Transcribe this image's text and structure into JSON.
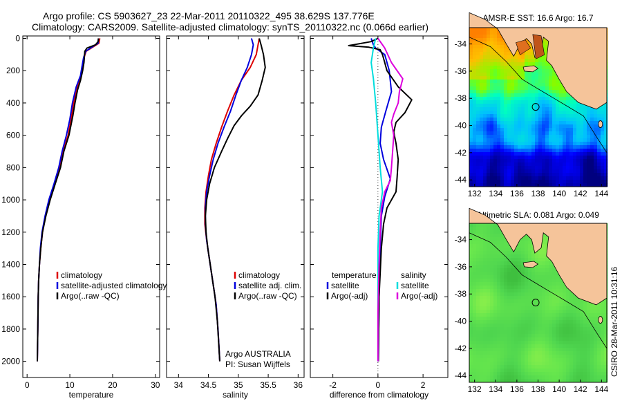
{
  "header": {
    "line1": "Argo profile: CS 5903627_23 22-Mar-2011 20110322_495 38.629S 137.776E",
    "line2": "Climatology: CARS2009. Satellite-adjusted climatology: synTS_20110322.nc (0.066d earlier)"
  },
  "side_text": "CSIRO 28-Mar-2011 10:31:16",
  "chart_data": [
    {
      "type": "line",
      "xlabel": "temperature",
      "ylabel": "",
      "xlim": [
        -1,
        31
      ],
      "ylim": [
        2100,
        0
      ],
      "xticks": [
        0,
        10,
        20,
        30
      ],
      "yticks": [
        0,
        200,
        400,
        600,
        800,
        1000,
        1200,
        1400,
        1600,
        1800,
        2000
      ],
      "legend": [
        "climatology",
        "satellite-adjusted climatology",
        "Argo(..raw -QC)"
      ],
      "legend_position": "lower-right",
      "series": [
        {
          "name": "climatology",
          "color": "#dd0000",
          "points": [
            [
              17.0,
              0
            ],
            [
              16.8,
              30
            ],
            [
              15.0,
              60
            ],
            [
              13.8,
              80
            ],
            [
              13.3,
              120
            ],
            [
              12.9,
              180
            ],
            [
              12.6,
              230
            ],
            [
              11.8,
              300
            ],
            [
              10.9,
              400
            ],
            [
              10.3,
              500
            ],
            [
              9.6,
              600
            ],
            [
              8.4,
              700
            ],
            [
              7.6,
              800
            ],
            [
              6.4,
              900
            ],
            [
              5.2,
              1000
            ],
            [
              4.3,
              1100
            ],
            [
              3.6,
              1200
            ],
            [
              3.2,
              1300
            ],
            [
              2.9,
              1400
            ],
            [
              2.7,
              1500
            ],
            [
              2.6,
              1600
            ],
            [
              2.5,
              1800
            ],
            [
              2.4,
              2000
            ]
          ]
        },
        {
          "name": "satellite-adjusted climatology",
          "color": "#0000dd",
          "points": [
            [
              16.7,
              0
            ],
            [
              16.6,
              30
            ],
            [
              14.8,
              60
            ],
            [
              13.7,
              80
            ],
            [
              13.2,
              120
            ],
            [
              12.8,
              180
            ],
            [
              12.5,
              230
            ],
            [
              11.5,
              300
            ],
            [
              10.6,
              400
            ],
            [
              10.0,
              500
            ],
            [
              9.2,
              600
            ],
            [
              8.2,
              700
            ],
            [
              7.4,
              800
            ],
            [
              6.3,
              900
            ],
            [
              5.1,
              1000
            ],
            [
              4.2,
              1100
            ],
            [
              3.5,
              1200
            ],
            [
              3.1,
              1300
            ],
            [
              2.9,
              1400
            ],
            [
              2.7,
              1500
            ],
            [
              2.6,
              1600
            ],
            [
              2.5,
              1800
            ],
            [
              2.4,
              2000
            ]
          ]
        },
        {
          "name": "Argo(..raw -QC)",
          "color": "#000000",
          "points": [
            [
              16.7,
              0
            ],
            [
              16.6,
              20
            ],
            [
              16.0,
              40
            ],
            [
              14.0,
              60
            ],
            [
              13.5,
              80
            ],
            [
              13.3,
              150
            ],
            [
              13.0,
              200
            ],
            [
              12.5,
              260
            ],
            [
              11.8,
              320
            ],
            [
              11.2,
              400
            ],
            [
              10.7,
              480
            ],
            [
              9.8,
              600
            ],
            [
              8.6,
              700
            ],
            [
              7.8,
              800
            ],
            [
              6.6,
              900
            ],
            [
              5.4,
              1000
            ],
            [
              4.4,
              1100
            ],
            [
              3.6,
              1200
            ],
            [
              3.2,
              1300
            ],
            [
              2.9,
              1400
            ],
            [
              2.7,
              1500
            ],
            [
              2.6,
              1600
            ],
            [
              2.5,
              1800
            ],
            [
              2.4,
              2000
            ]
          ]
        }
      ]
    },
    {
      "type": "line",
      "xlabel": "salinity",
      "ylabel": "",
      "xlim": [
        33.8,
        36.1
      ],
      "ylim": [
        2100,
        0
      ],
      "xticks": [
        34,
        34.5,
        35,
        35.5,
        36
      ],
      "xtick_labels": [
        "34",
        "34.5",
        "35",
        "35.5",
        "36"
      ],
      "legend": [
        "climatology",
        "satellite adj. clim.",
        "Argo(..raw -QC)"
      ],
      "legend_position": "lower-right",
      "annotation": [
        "Argo AUSTRALIA",
        "PI: Susan Wijffels"
      ],
      "series": [
        {
          "name": "climatology",
          "color": "#dd0000",
          "points": [
            [
              35.35,
              0
            ],
            [
              35.33,
              40
            ],
            [
              35.3,
              100
            ],
            [
              35.2,
              180
            ],
            [
              35.05,
              260
            ],
            [
              34.93,
              350
            ],
            [
              34.82,
              450
            ],
            [
              34.72,
              550
            ],
            [
              34.63,
              650
            ],
            [
              34.55,
              750
            ],
            [
              34.5,
              850
            ],
            [
              34.46,
              950
            ],
            [
              34.44,
              1050
            ],
            [
              34.44,
              1150
            ],
            [
              34.47,
              1250
            ],
            [
              34.51,
              1350
            ],
            [
              34.55,
              1450
            ],
            [
              34.59,
              1550
            ],
            [
              34.63,
              1650
            ],
            [
              34.66,
              1800
            ],
            [
              34.69,
              2000
            ]
          ]
        },
        {
          "name": "satellite adj. clim.",
          "color": "#0000dd",
          "points": [
            [
              35.22,
              0
            ],
            [
              35.25,
              40
            ],
            [
              35.22,
              100
            ],
            [
              35.15,
              180
            ],
            [
              35.05,
              260
            ],
            [
              34.96,
              350
            ],
            [
              34.87,
              450
            ],
            [
              34.76,
              550
            ],
            [
              34.66,
              650
            ],
            [
              34.58,
              750
            ],
            [
              34.52,
              850
            ],
            [
              34.47,
              950
            ],
            [
              34.45,
              1050
            ],
            [
              34.45,
              1150
            ],
            [
              34.47,
              1250
            ],
            [
              34.51,
              1350
            ],
            [
              34.55,
              1450
            ],
            [
              34.59,
              1550
            ],
            [
              34.63,
              1650
            ],
            [
              34.66,
              1800
            ],
            [
              34.69,
              2000
            ]
          ]
        },
        {
          "name": "Argo(..raw -QC)",
          "color": "#000000",
          "points": [
            [
              35.35,
              0
            ],
            [
              35.38,
              40
            ],
            [
              35.42,
              100
            ],
            [
              35.45,
              180
            ],
            [
              35.4,
              260
            ],
            [
              35.33,
              350
            ],
            [
              35.2,
              420
            ],
            [
              35.05,
              480
            ],
            [
              34.93,
              540
            ],
            [
              34.82,
              620
            ],
            [
              34.72,
              700
            ],
            [
              34.6,
              800
            ],
            [
              34.52,
              900
            ],
            [
              34.47,
              1000
            ],
            [
              34.45,
              1100
            ],
            [
              34.46,
              1200
            ],
            [
              34.49,
              1300
            ],
            [
              34.53,
              1400
            ],
            [
              34.57,
              1500
            ],
            [
              34.61,
              1600
            ],
            [
              34.65,
              1750
            ],
            [
              34.69,
              2000
            ]
          ]
        }
      ]
    },
    {
      "type": "line",
      "xlabel": "difference from climatology",
      "ylabel": "",
      "xlim": [
        -3,
        3.1
      ],
      "ylim": [
        2100,
        0
      ],
      "xticks": [
        -2,
        0,
        2
      ],
      "zero_line": true,
      "legend_groups": [
        {
          "title": "temperature",
          "items": [
            "satellite",
            "Argo(-adj)"
          ]
        },
        {
          "title": "salinity",
          "items": [
            "satellite",
            "Argo(-adj)"
          ]
        }
      ],
      "legend_position": "lower-center",
      "series": [
        {
          "name": "temperature satellite",
          "color": "#0000dd",
          "points": [
            [
              -0.3,
              0
            ],
            [
              -0.2,
              40
            ],
            [
              -0.1,
              60
            ],
            [
              0.3,
              100
            ],
            [
              0.5,
              200
            ],
            [
              0.6,
              330
            ],
            [
              0.35,
              450
            ],
            [
              0.15,
              550
            ],
            [
              0.1,
              650
            ],
            [
              0.25,
              750
            ],
            [
              0.55,
              870
            ],
            [
              0.3,
              980
            ],
            [
              0.15,
              1100
            ],
            [
              0.1,
              1300
            ],
            [
              0.05,
              1600
            ],
            [
              0.02,
              2000
            ]
          ]
        },
        {
          "name": "temperature Argo(-adj)",
          "color": "#000000",
          "points": [
            [
              0.0,
              0
            ],
            [
              -0.3,
              20
            ],
            [
              -1.3,
              45
            ],
            [
              -0.4,
              55
            ],
            [
              0.1,
              70
            ],
            [
              0.2,
              100
            ],
            [
              0.3,
              150
            ],
            [
              0.4,
              200
            ],
            [
              0.9,
              300
            ],
            [
              1.5,
              380
            ],
            [
              1.2,
              460
            ],
            [
              0.8,
              520
            ],
            [
              0.7,
              580
            ],
            [
              0.8,
              650
            ],
            [
              0.9,
              750
            ],
            [
              0.85,
              860
            ],
            [
              0.8,
              950
            ],
            [
              0.4,
              1050
            ],
            [
              0.25,
              1150
            ],
            [
              0.15,
              1300
            ],
            [
              0.05,
              1600
            ],
            [
              0.02,
              2000
            ]
          ]
        },
        {
          "name": "salinity satellite",
          "color": "#00dddd",
          "points": [
            [
              -0.1,
              0
            ],
            [
              -0.2,
              60
            ],
            [
              -0.3,
              150
            ],
            [
              -0.2,
              250
            ],
            [
              -0.1,
              400
            ],
            [
              0.0,
              600
            ],
            [
              0.1,
              800
            ],
            [
              0.2,
              950
            ],
            [
              0.05,
              1100
            ],
            [
              0.0,
              1300
            ],
            [
              0.0,
              1600
            ],
            [
              0.0,
              2000
            ]
          ]
        },
        {
          "name": "salinity Argo(-adj)",
          "color": "#dd00dd",
          "points": [
            [
              0.0,
              0
            ],
            [
              0.3,
              60
            ],
            [
              0.6,
              150
            ],
            [
              1.1,
              250
            ],
            [
              0.95,
              330
            ],
            [
              0.9,
              400
            ],
            [
              0.7,
              470
            ],
            [
              0.6,
              520
            ],
            [
              0.7,
              600
            ],
            [
              0.65,
              700
            ],
            [
              0.6,
              800
            ],
            [
              0.55,
              880
            ],
            [
              0.3,
              950
            ],
            [
              0.15,
              1050
            ],
            [
              0.1,
              1200
            ],
            [
              0.05,
              1400
            ],
            [
              0.0,
              1700
            ],
            [
              0.0,
              2000
            ]
          ]
        }
      ]
    },
    {
      "type": "heatmap",
      "title": "AMSR-E SST: 16.6 Argo: 16.7",
      "xlim": [
        131.5,
        144.5
      ],
      "ylim": [
        -44.5,
        -32.8
      ],
      "xticks": [
        132,
        134,
        136,
        138,
        140,
        142,
        144
      ],
      "yticks": [
        -34,
        -36,
        -38,
        -40,
        -42,
        -44
      ],
      "argo_position": {
        "lon": 137.776,
        "lat": -38.629
      },
      "colorscale": [
        "#00007f",
        "#0000ff",
        "#00bfff",
        "#00ffbf",
        "#7fff00",
        "#ffbf00",
        "#ff7f00"
      ]
    },
    {
      "type": "heatmap",
      "title": "Altimetric SLA: 0.081 Argo: 0.049",
      "xlim": [
        131.5,
        144.5
      ],
      "ylim": [
        -44.5,
        -32.8
      ],
      "xticks": [
        132,
        134,
        136,
        138,
        140,
        142,
        144
      ],
      "yticks": [
        -34,
        -36,
        -38,
        -40,
        -42,
        -44
      ],
      "argo_position": {
        "lon": 137.776,
        "lat": -38.629
      },
      "colorscale": [
        "#3fbf3f",
        "#4fd64f",
        "#66e64d",
        "#8ff04a"
      ]
    }
  ]
}
